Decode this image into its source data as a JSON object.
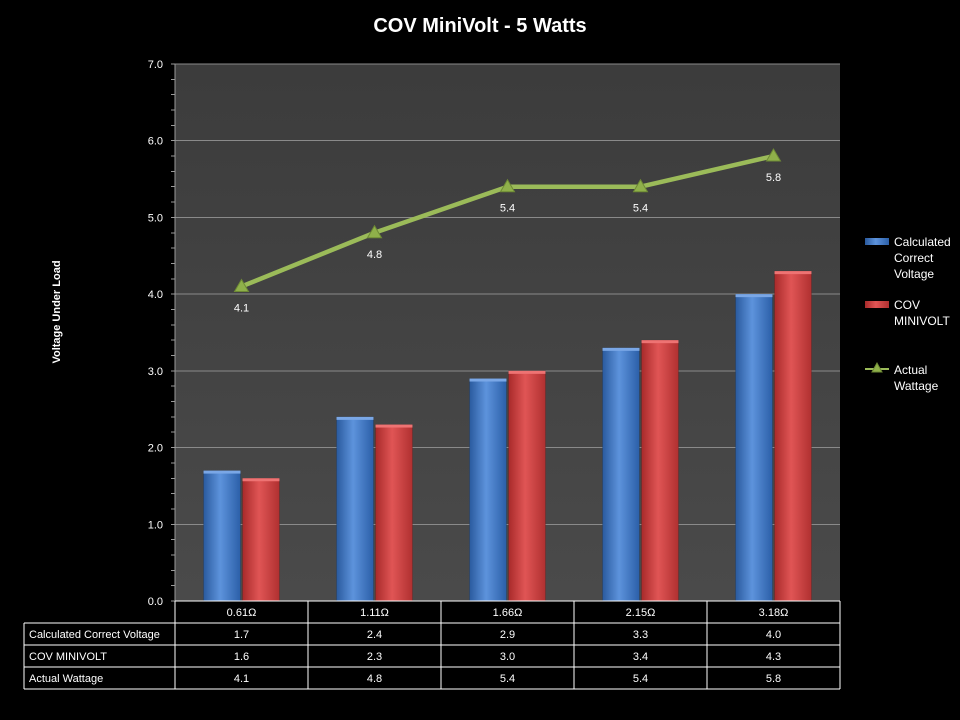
{
  "chart_data": {
    "type": "bar",
    "title": "COV MiniVolt - 5 Watts",
    "ylabel": "Voltage Under Load",
    "xlabel": "",
    "ylim": [
      0,
      7
    ],
    "yticks": [
      "0.0",
      "1.0",
      "2.0",
      "3.0",
      "4.0",
      "5.0",
      "6.0",
      "7.0"
    ],
    "y_minor_step": 0.2,
    "grid": true,
    "legend_position": "right",
    "categories": [
      "0.61Ω",
      "1.11Ω",
      "1.66Ω",
      "2.15Ω",
      "3.18Ω"
    ],
    "series": [
      {
        "name": "Calculated Correct Voltage",
        "legend_lines": [
          "Calculated",
          "Correct",
          "Voltage"
        ],
        "type": "bar",
        "color": "#4f81bd",
        "values": [
          1.7,
          2.4,
          2.9,
          3.3,
          4.0
        ],
        "table_values": [
          "1.7",
          "2.4",
          "2.9",
          "3.3",
          "4.0"
        ]
      },
      {
        "name": "COV MINIVOLT",
        "legend_lines": [
          "COV",
          "MINIVOLT"
        ],
        "type": "bar",
        "color": "#c0504d",
        "values": [
          1.6,
          2.3,
          3.0,
          3.4,
          4.3
        ],
        "table_values": [
          "1.6",
          "2.3",
          "3.0",
          "3.4",
          "4.3"
        ]
      },
      {
        "name": "Actual Wattage",
        "legend_lines": [
          "Actual",
          "Wattage"
        ],
        "type": "line",
        "color": "#9bbb59",
        "marker": "triangle",
        "values": [
          4.1,
          4.8,
          5.4,
          5.4,
          5.8
        ],
        "data_labels": [
          "4.1",
          "4.8",
          "5.4",
          "5.4",
          "5.8"
        ],
        "table_values": [
          "4.1",
          "4.8",
          "5.4",
          "5.4",
          "5.8"
        ]
      }
    ],
    "data_table": true
  }
}
